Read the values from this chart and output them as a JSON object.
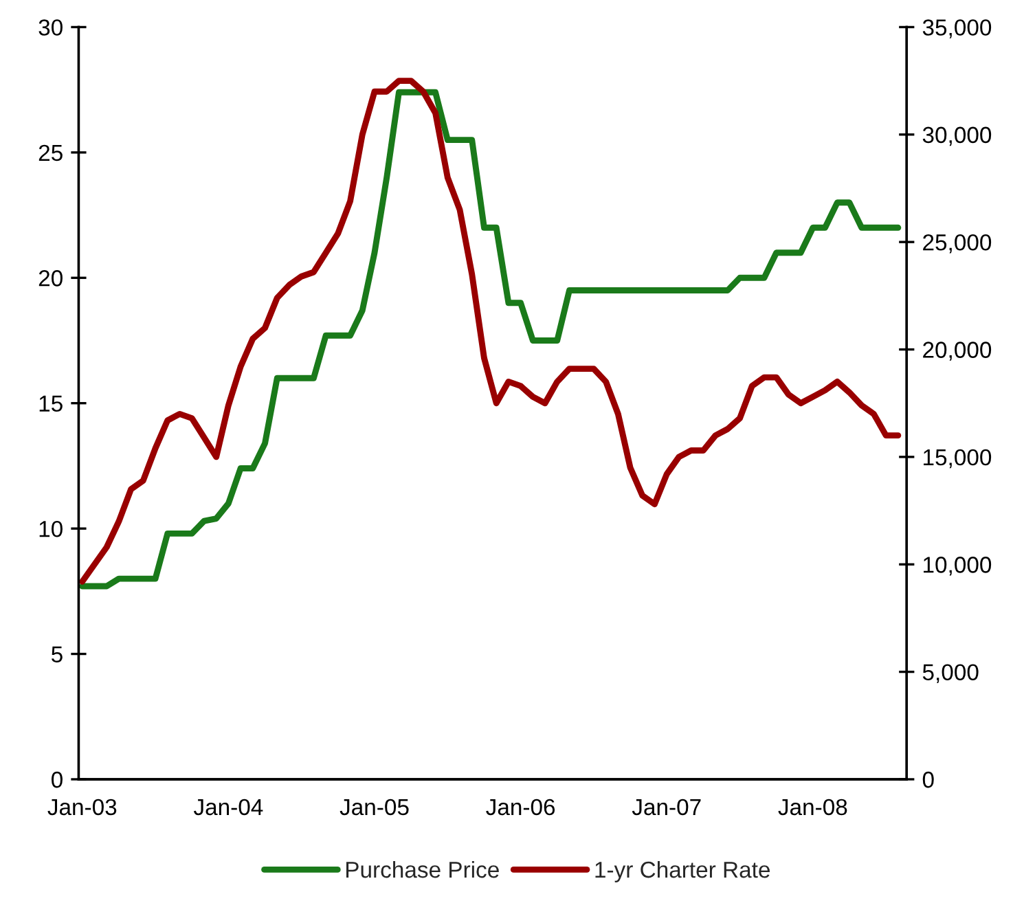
{
  "chart_data": {
    "type": "line",
    "categories": [
      "Jan-03",
      null,
      null,
      null,
      null,
      null,
      null,
      null,
      null,
      null,
      null,
      null,
      "Jan-04",
      null,
      null,
      null,
      null,
      null,
      null,
      null,
      null,
      null,
      null,
      null,
      "Jan-05",
      null,
      null,
      null,
      null,
      null,
      null,
      null,
      null,
      null,
      null,
      null,
      "Jan-06",
      null,
      null,
      null,
      null,
      null,
      null,
      null,
      null,
      null,
      null,
      null,
      "Jan-07",
      null,
      null,
      null,
      null,
      null,
      null,
      null,
      null,
      null,
      null,
      null,
      "Jan-08",
      null,
      null,
      null,
      null,
      null,
      null,
      null
    ],
    "ylim": [
      0,
      30
    ],
    "yticks": [
      0,
      5,
      10,
      15,
      20,
      25,
      30
    ],
    "y2lim": [
      0,
      35000
    ],
    "y2ticks": [
      {
        "value": 0,
        "label": "0"
      },
      {
        "value": 5000,
        "label": "5,000"
      },
      {
        "value": 10000,
        "label": "10,000"
      },
      {
        "value": 15000,
        "label": "15,000"
      },
      {
        "value": 20000,
        "label": "20,000"
      },
      {
        "value": 25000,
        "label": "25,000"
      },
      {
        "value": 30000,
        "label": "30,000"
      },
      {
        "value": 35000,
        "label": "35,000"
      }
    ],
    "grid": false,
    "legend": "bottom",
    "marker": "none",
    "line_style": "solid",
    "series": [
      {
        "name": "Purchase Price",
        "color": "#1a7a1a",
        "values": [
          7.7,
          7.7,
          7.7,
          8.0,
          8.0,
          8.0,
          8.0,
          9.8,
          9.8,
          9.8,
          10.3,
          10.4,
          11.0,
          12.4,
          12.4,
          13.4,
          16.0,
          16.0,
          16.0,
          16.0,
          17.7,
          17.7,
          17.7,
          18.7,
          21.0,
          24.0,
          27.4,
          27.4,
          27.4,
          27.4,
          25.5,
          25.5,
          25.5,
          22.0,
          22.0,
          19.0,
          19.0,
          17.5,
          17.5,
          17.5,
          19.5,
          19.5,
          19.5,
          19.5,
          19.5,
          19.5,
          19.5,
          19.5,
          19.5,
          19.5,
          19.5,
          19.5,
          19.5,
          19.5,
          20.0,
          20.0,
          20.0,
          21.0,
          21.0,
          21.0,
          22.0,
          22.0,
          23.0,
          23.0,
          22.0,
          22.0,
          22.0,
          22.0
        ]
      },
      {
        "name": "1-yr Charter Rate",
        "color": "#990000",
        "axis": "y2",
        "values": [
          9200,
          10000,
          10800,
          12000,
          13500,
          13900,
          15400,
          16700,
          17000,
          16800,
          15900,
          15000,
          17400,
          19200,
          20500,
          21000,
          22400,
          23000,
          23400,
          23600,
          24500,
          25400,
          26900,
          30000,
          32000,
          32000,
          32500,
          32500,
          32000,
          31000,
          28000,
          26500,
          23500,
          19600,
          17500,
          18500,
          18300,
          17800,
          17500,
          18500,
          19100,
          19100,
          19100,
          18500,
          17000,
          14500,
          13200,
          12800,
          14200,
          15000,
          15300,
          15300,
          16000,
          16300,
          16800,
          18300,
          18700,
          18700,
          17900,
          17500,
          17800,
          18100,
          18500,
          18000,
          17400,
          17000,
          16000,
          16000
        ]
      }
    ]
  }
}
